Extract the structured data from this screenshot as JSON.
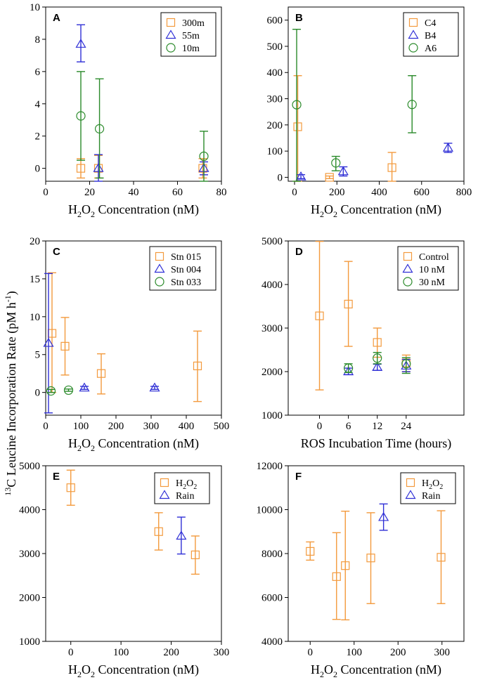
{
  "figure": {
    "shared_ylabel": "C Leucine Incorporation Rate (pM h",
    "shared_ylabel_sup": "13",
    "shared_ylabel_tail_sup": "-1",
    "shared_ylabel_close": ")"
  },
  "colors": {
    "orange": "#f39a3d",
    "blue": "#2f2fd6",
    "green": "#2a8a2a",
    "axis": "#000000"
  },
  "chart_data": [
    {
      "id": "A",
      "type": "scatter",
      "letter": "A",
      "xlabel": "H2O2 Concentration (nM)",
      "ylabel": "",
      "xlim": [
        0,
        80
      ],
      "ylim": [
        -0.8,
        10
      ],
      "xticks": [
        0,
        20,
        40,
        60,
        80
      ],
      "yticks": [
        0,
        2,
        4,
        6,
        8,
        10
      ],
      "legend_position": "top-right",
      "series": [
        {
          "name": "300m",
          "marker": "square",
          "color": "orange",
          "points": [
            {
              "x": 16,
              "y": 0,
              "lo": -0.6,
              "hi": 0.6
            },
            {
              "x": 24,
              "y": 0,
              "lo": -0.6,
              "hi": 0.8
            },
            {
              "x": 71.5,
              "y": 0,
              "lo": -0.6,
              "hi": 0.6
            }
          ]
        },
        {
          "name": "55m",
          "marker": "triangle",
          "color": "blue",
          "points": [
            {
              "x": 16,
              "y": 7.7,
              "lo": 6.6,
              "hi": 8.9
            },
            {
              "x": 24,
              "y": 0,
              "lo": -0.8,
              "hi": 0.85
            },
            {
              "x": 72,
              "y": 0,
              "lo": -0.4,
              "hi": 0.4
            }
          ]
        },
        {
          "name": "10m",
          "marker": "circle",
          "color": "green",
          "points": [
            {
              "x": 16,
              "y": 3.25,
              "lo": 0.5,
              "hi": 6.0
            },
            {
              "x": 24.5,
              "y": 2.45,
              "lo": -0.6,
              "hi": 5.55
            },
            {
              "x": 72,
              "y": 0.75,
              "lo": -0.8,
              "hi": 2.3
            }
          ]
        }
      ]
    },
    {
      "id": "B",
      "type": "scatter",
      "letter": "B",
      "xlabel": "H2O2 Concentration (nM)",
      "ylabel": "",
      "xlim": [
        -30,
        800
      ],
      "ylim": [
        -15,
        650
      ],
      "xticks": [
        0,
        200,
        400,
        600,
        800
      ],
      "yticks": [
        0,
        100,
        200,
        300,
        400,
        500,
        600
      ],
      "legend_position": "top-right",
      "series": [
        {
          "name": "C4",
          "marker": "square",
          "color": "orange",
          "points": [
            {
              "x": 15,
              "y": 193,
              "lo": -15,
              "hi": 388
            },
            {
              "x": 165,
              "y": 0,
              "lo": -5,
              "hi": 5
            },
            {
              "x": 460,
              "y": 37,
              "lo": -15,
              "hi": 95
            }
          ]
        },
        {
          "name": "B4",
          "marker": "triangle",
          "color": "blue",
          "points": [
            {
              "x": 30,
              "y": 2,
              "lo": -5,
              "hi": 10
            },
            {
              "x": 230,
              "y": 22,
              "lo": 5,
              "hi": 40
            },
            {
              "x": 725,
              "y": 112,
              "lo": 95,
              "hi": 130
            }
          ]
        },
        {
          "name": "A6",
          "marker": "circle",
          "color": "green",
          "points": [
            {
              "x": 10,
              "y": 277,
              "lo": -15,
              "hi": 565
            },
            {
              "x": 195,
              "y": 55,
              "lo": 25,
              "hi": 80
            },
            {
              "x": 555,
              "y": 278,
              "lo": 170,
              "hi": 388
            }
          ]
        }
      ]
    },
    {
      "id": "C",
      "type": "scatter",
      "letter": "C",
      "xlabel": "H2O2 Concentration (nM)",
      "ylabel": "",
      "xlim": [
        0,
        500
      ],
      "ylim": [
        -3,
        20
      ],
      "xticks": [
        0,
        100,
        200,
        300,
        400,
        500
      ],
      "yticks": [
        0,
        5,
        10,
        15,
        20
      ],
      "legend_position": "top-right",
      "series": [
        {
          "name": "Stn 015",
          "marker": "square",
          "color": "orange",
          "points": [
            {
              "x": 18,
              "y": 7.8,
              "lo": 0,
              "hi": 15.8
            },
            {
              "x": 55,
              "y": 6.1,
              "lo": 2.3,
              "hi": 9.9
            },
            {
              "x": 158,
              "y": 2.5,
              "lo": -0.2,
              "hi": 5.1
            },
            {
              "x": 432,
              "y": 3.5,
              "lo": -1.2,
              "hi": 8.1
            }
          ]
        },
        {
          "name": "Stn 004",
          "marker": "triangle",
          "color": "blue",
          "points": [
            {
              "x": 8,
              "y": 6.5,
              "lo": -2.7,
              "hi": 15.7
            },
            {
              "x": 110,
              "y": 0.6,
              "lo": 0.4,
              "hi": 0.8
            },
            {
              "x": 310,
              "y": 0.6,
              "lo": 0.4,
              "hi": 0.8
            }
          ]
        },
        {
          "name": "Stn 033",
          "marker": "circle",
          "color": "green",
          "points": [
            {
              "x": 15,
              "y": 0.2,
              "lo": 0,
              "hi": 0.4
            },
            {
              "x": 65,
              "y": 0.3,
              "lo": 0.15,
              "hi": 0.45
            }
          ]
        }
      ]
    },
    {
      "id": "D",
      "type": "scatter",
      "letter": "D",
      "xlabel": "ROS Incubation Time (hours)",
      "ylabel": "",
      "xlim": [
        -6.5,
        30
      ],
      "ylim": [
        1000,
        5000
      ],
      "xticks": [
        0,
        6,
        12,
        24
      ],
      "xtick_positions": [
        0,
        6,
        12,
        18
      ],
      "yticks": [
        1000,
        2000,
        3000,
        4000,
        5000
      ],
      "legend_position": "top-right",
      "series": [
        {
          "name": "Control",
          "marker": "square",
          "color": "orange",
          "points": [
            {
              "x": 0,
              "y": 3280,
              "lo": 1580,
              "hi": 4990
            },
            {
              "x": 6,
              "y": 3550,
              "lo": 2580,
              "hi": 4530
            },
            {
              "x": 12,
              "y": 2670,
              "lo": 2330,
              "hi": 3000
            },
            {
              "x": 18,
              "y": 2200,
              "lo": 2000,
              "hi": 2380
            }
          ]
        },
        {
          "name": "10 nM",
          "marker": "triangle",
          "color": "blue",
          "points": [
            {
              "x": 6,
              "y": 2000,
              "lo": 1930,
              "hi": 2080
            },
            {
              "x": 12,
              "y": 2100,
              "lo": 2030,
              "hi": 2170
            },
            {
              "x": 18,
              "y": 2130,
              "lo": 2000,
              "hi": 2280
            }
          ]
        },
        {
          "name": "30 nM",
          "marker": "circle",
          "color": "green",
          "points": [
            {
              "x": 6,
              "y": 2080,
              "lo": 1980,
              "hi": 2180
            },
            {
              "x": 12,
              "y": 2310,
              "lo": 2180,
              "hi": 2440
            },
            {
              "x": 18,
              "y": 2180,
              "lo": 1960,
              "hi": 2320
            }
          ]
        }
      ]
    },
    {
      "id": "E",
      "type": "scatter",
      "letter": "E",
      "xlabel": "H2O2 Concentration (nM)",
      "ylabel": "",
      "xlim": [
        -50,
        300
      ],
      "ylim": [
        1000,
        5000
      ],
      "xticks": [
        0,
        100,
        200,
        300
      ],
      "yticks": [
        1000,
        2000,
        3000,
        4000,
        5000
      ],
      "legend_position": "top-right",
      "series": [
        {
          "name": "H2O2",
          "marker": "square",
          "color": "orange",
          "points": [
            {
              "x": 0,
              "y": 4500,
              "lo": 4100,
              "hi": 4900
            },
            {
              "x": 175,
              "y": 3500,
              "lo": 3080,
              "hi": 3930
            },
            {
              "x": 248,
              "y": 2970,
              "lo": 2530,
              "hi": 3400
            }
          ]
        },
        {
          "name": "Rain",
          "marker": "triangle",
          "color": "blue",
          "points": [
            {
              "x": 220,
              "y": 3400,
              "lo": 2990,
              "hi": 3830
            }
          ]
        }
      ]
    },
    {
      "id": "F",
      "type": "scatter",
      "letter": "F",
      "xlabel": "H2O2 Concentration (nM)",
      "ylabel": "",
      "xlim": [
        -50,
        350
      ],
      "ylim": [
        4000,
        12000
      ],
      "xticks": [
        0,
        100,
        200,
        300
      ],
      "yticks": [
        4000,
        6000,
        8000,
        10000,
        12000
      ],
      "legend_position": "top-right",
      "series": [
        {
          "name": "H2O2",
          "marker": "square",
          "color": "orange",
          "points": [
            {
              "x": 0,
              "y": 8100,
              "lo": 7700,
              "hi": 8530
            },
            {
              "x": 60,
              "y": 6950,
              "lo": 5000,
              "hi": 8950
            },
            {
              "x": 80,
              "y": 7450,
              "lo": 4980,
              "hi": 9930
            },
            {
              "x": 138,
              "y": 7800,
              "lo": 5720,
              "hi": 9860
            },
            {
              "x": 298,
              "y": 7830,
              "lo": 5720,
              "hi": 9950
            }
          ]
        },
        {
          "name": "Rain",
          "marker": "triangle",
          "color": "blue",
          "points": [
            {
              "x": 167,
              "y": 9650,
              "lo": 9060,
              "hi": 10260
            }
          ]
        }
      ]
    }
  ]
}
